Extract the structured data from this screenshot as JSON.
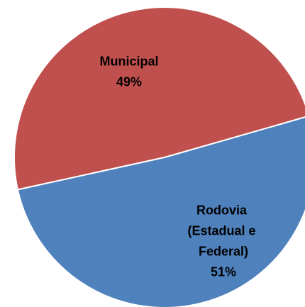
{
  "chart_data": {
    "type": "pie",
    "categories": [
      "Municipal",
      "Rodovia (Estadual e Federal)"
    ],
    "values": [
      49,
      51
    ],
    "value_labels": [
      "49%",
      "51%"
    ],
    "colors": [
      "#c0504d",
      "#4f81bd"
    ]
  }
}
